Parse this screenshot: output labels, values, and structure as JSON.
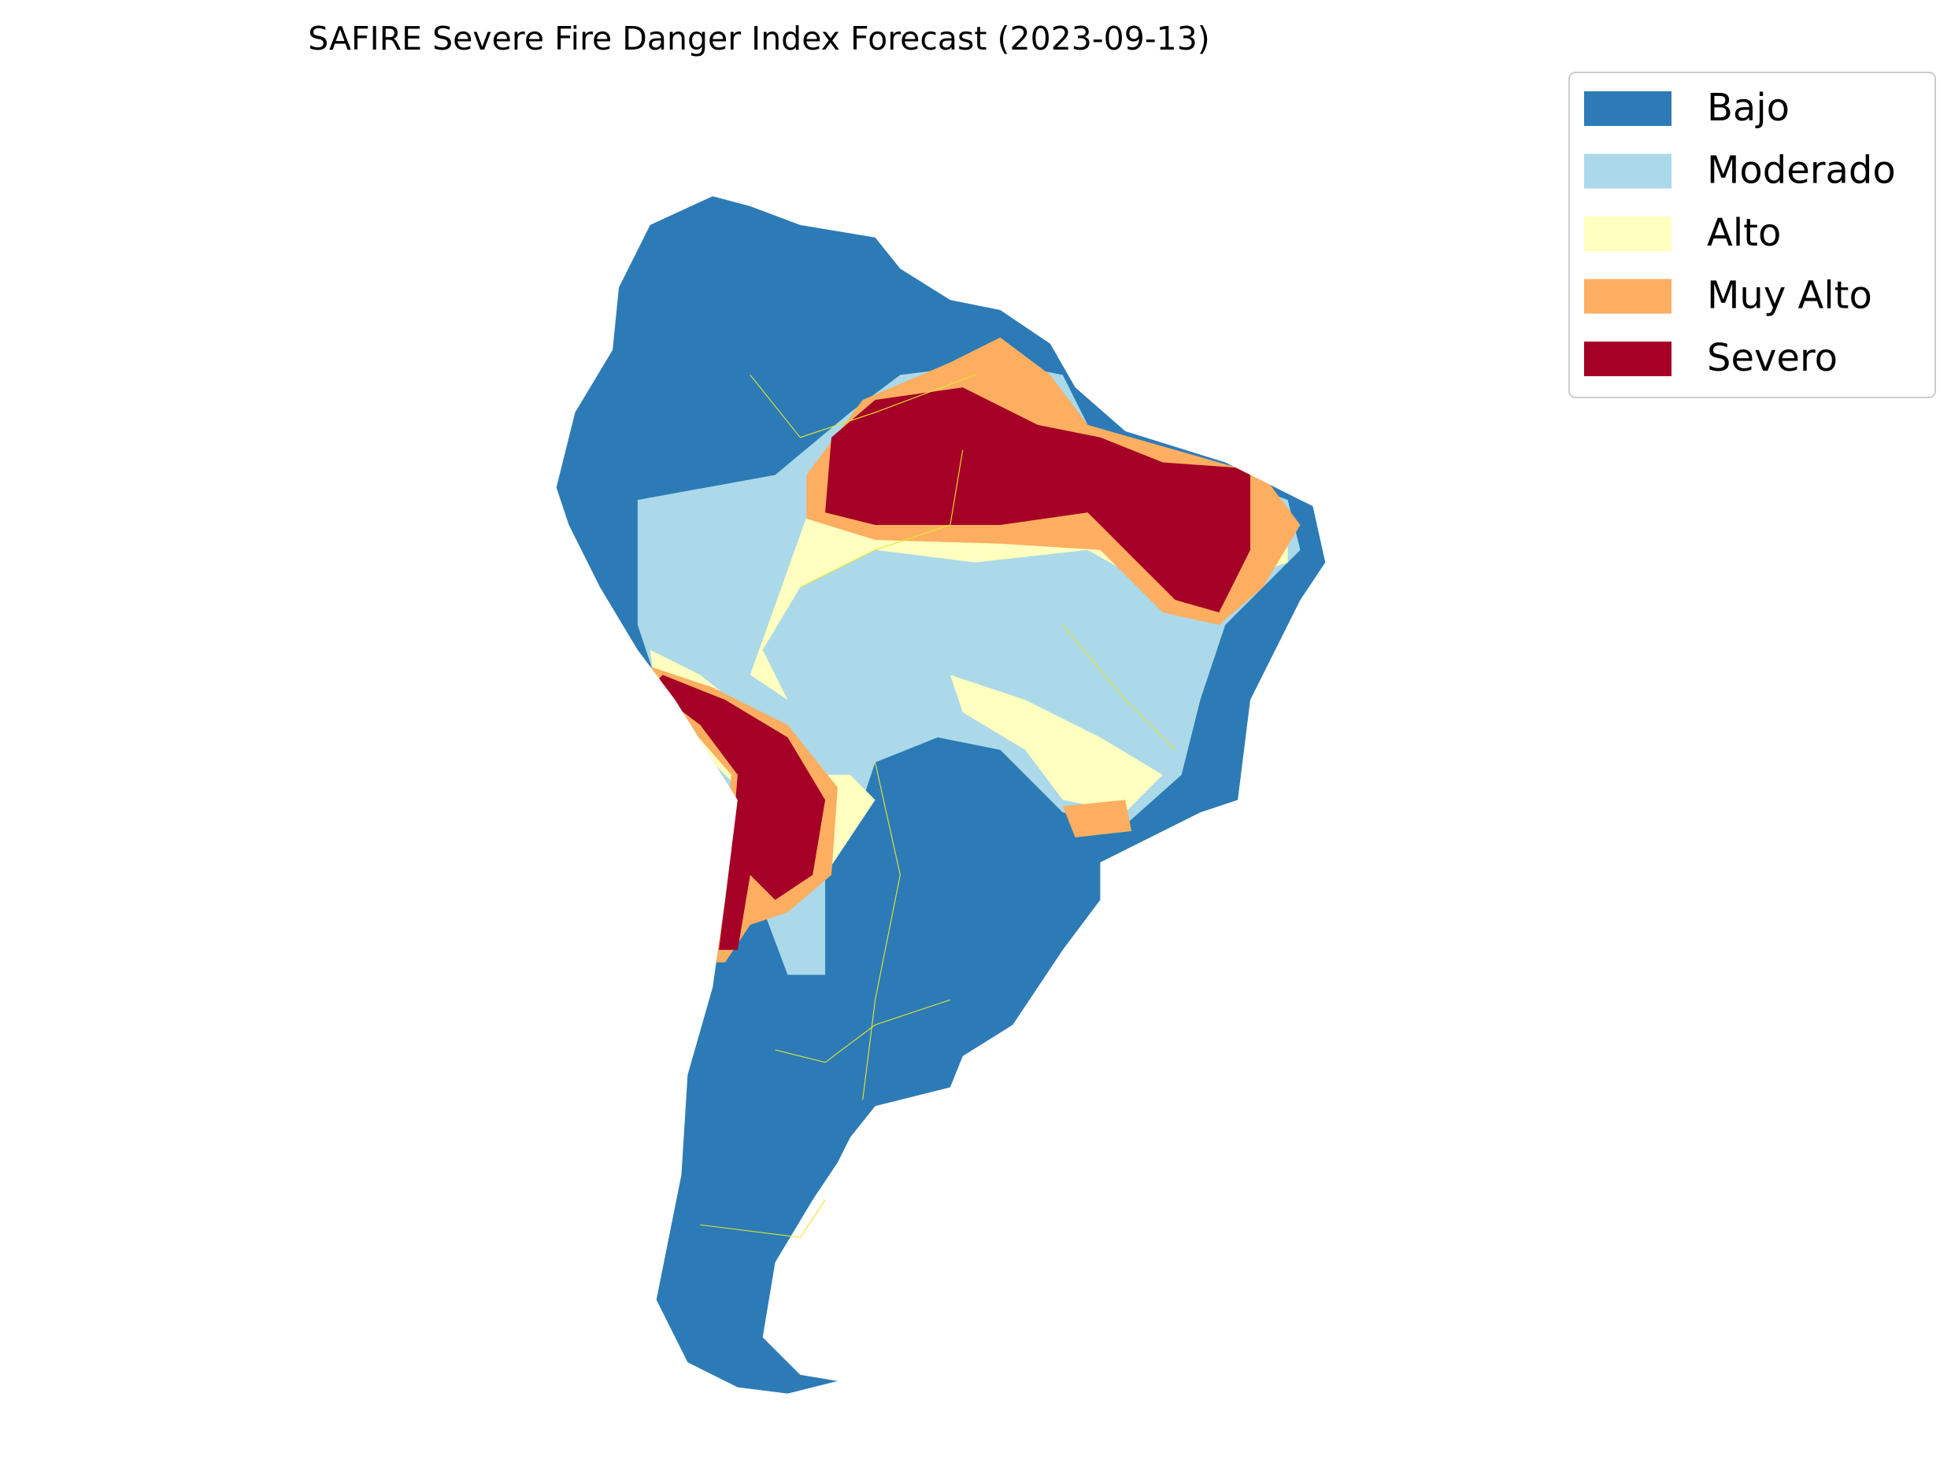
{
  "title": "SAFIRE Severe Fire Danger Index Forecast (2023-09-13)",
  "legend": {
    "items": [
      {
        "label": "Bajo",
        "color": "#2c7bb6"
      },
      {
        "label": "Moderado",
        "color": "#abd9e9"
      },
      {
        "label": "Alto",
        "color": "#ffffbf"
      },
      {
        "label": "Muy Alto",
        "color": "#fdae61"
      },
      {
        "label": "Severo",
        "color": "#a50026"
      }
    ]
  }
}
